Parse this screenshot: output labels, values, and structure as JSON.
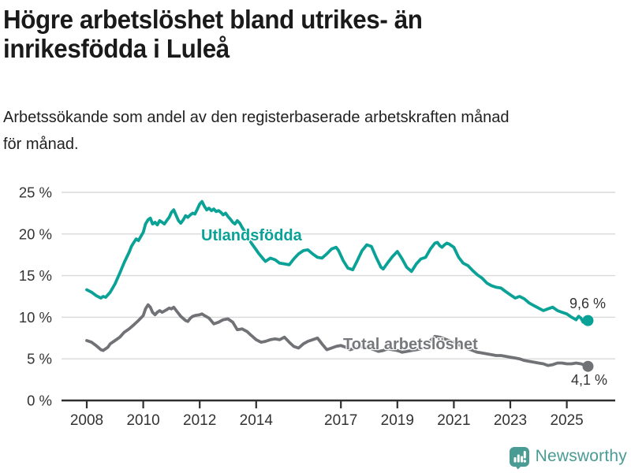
{
  "header": {
    "title": "Högre arbetslöshet bland utrikes- än inrikesfödda i Luleå",
    "title_lines": [
      "Högre arbetslöshet bland utrikes- än",
      "inrikesfödda i Luleå"
    ],
    "subtitle": "Arbetssökande som andel av den registerbaserade arbetskraften månad för månad.",
    "subtitle_lines": [
      "Arbetssökande som andel av den registerbaserade arbetskraften månad",
      "för månad."
    ]
  },
  "footer": {
    "brand": "Newsworthy",
    "brand_color": "#4a9b94",
    "logo_icon": "bar-chart-speech-bubble-icon"
  },
  "chart_data": {
    "type": "line",
    "title": "Högre arbetslöshet bland utrikes- än inrikesfödda i Luleå",
    "subtitle": "Arbetssökande som andel av den registerbaserade arbetskraften månad för månad.",
    "xlabel": "",
    "ylabel": "",
    "x_unit": "year (monthly observations)",
    "xlim": [
      2007.1,
      2026.7
    ],
    "ylim": [
      0,
      25
    ],
    "grid": true,
    "grid_color": "#d9d9d9",
    "axis_color": "#2f2f31",
    "tick_text_color": "#333333",
    "legend_position": "inline-labels",
    "yticks": [
      {
        "value": 0,
        "label": "0 %"
      },
      {
        "value": 5,
        "label": "5 %"
      },
      {
        "value": 10,
        "label": "10 %"
      },
      {
        "value": 15,
        "label": "15 %"
      },
      {
        "value": 20,
        "label": "20 %"
      },
      {
        "value": 25,
        "label": "25 %"
      }
    ],
    "xticks": [
      {
        "value": 2008,
        "label": "2008"
      },
      {
        "value": 2010,
        "label": "2010"
      },
      {
        "value": 2012,
        "label": "2012"
      },
      {
        "value": 2014,
        "label": "2014"
      },
      {
        "value": 2017,
        "label": "2017"
      },
      {
        "value": 2019,
        "label": "2019"
      },
      {
        "value": 2021,
        "label": "2021"
      },
      {
        "value": 2023,
        "label": "2023"
      },
      {
        "value": 2025,
        "label": "2025"
      }
    ],
    "series": [
      {
        "name": "Utlandsfödda",
        "key": "utlandsfodda",
        "color": "#0aa296",
        "end_value": 9.6,
        "end_label": "9,6 %",
        "points": [
          [
            2008.0,
            13.3
          ],
          [
            2008.17,
            13.0
          ],
          [
            2008.33,
            12.6
          ],
          [
            2008.5,
            12.3
          ],
          [
            2008.58,
            12.5
          ],
          [
            2008.67,
            12.4
          ],
          [
            2008.83,
            13.0
          ],
          [
            2009.0,
            14.0
          ],
          [
            2009.17,
            15.3
          ],
          [
            2009.33,
            16.6
          ],
          [
            2009.5,
            17.8
          ],
          [
            2009.58,
            18.5
          ],
          [
            2009.67,
            19.0
          ],
          [
            2009.75,
            19.4
          ],
          [
            2009.83,
            19.2
          ],
          [
            2010.0,
            20.2
          ],
          [
            2010.08,
            21.2
          ],
          [
            2010.17,
            21.7
          ],
          [
            2010.25,
            21.9
          ],
          [
            2010.33,
            21.2
          ],
          [
            2010.42,
            21.4
          ],
          [
            2010.5,
            21.1
          ],
          [
            2010.58,
            21.6
          ],
          [
            2010.67,
            21.4
          ],
          [
            2010.75,
            21.2
          ],
          [
            2010.83,
            21.6
          ],
          [
            2010.92,
            22.0
          ],
          [
            2011.0,
            22.6
          ],
          [
            2011.08,
            22.9
          ],
          [
            2011.17,
            22.2
          ],
          [
            2011.25,
            21.6
          ],
          [
            2011.33,
            21.3
          ],
          [
            2011.42,
            21.7
          ],
          [
            2011.5,
            22.2
          ],
          [
            2011.58,
            22.0
          ],
          [
            2011.67,
            22.3
          ],
          [
            2011.75,
            22.5
          ],
          [
            2011.83,
            22.4
          ],
          [
            2011.92,
            23.0
          ],
          [
            2012.0,
            23.6
          ],
          [
            2012.08,
            23.9
          ],
          [
            2012.17,
            23.3
          ],
          [
            2012.25,
            22.9
          ],
          [
            2012.33,
            23.1
          ],
          [
            2012.42,
            22.8
          ],
          [
            2012.5,
            23.0
          ],
          [
            2012.58,
            22.7
          ],
          [
            2012.67,
            22.8
          ],
          [
            2012.75,
            22.6
          ],
          [
            2012.83,
            22.3
          ],
          [
            2012.92,
            22.5
          ],
          [
            2013.0,
            22.1
          ],
          [
            2013.08,
            21.8
          ],
          [
            2013.17,
            21.4
          ],
          [
            2013.25,
            21.2
          ],
          [
            2013.33,
            21.6
          ],
          [
            2013.42,
            21.3
          ],
          [
            2013.5,
            20.8
          ],
          [
            2013.67,
            19.9
          ],
          [
            2013.83,
            18.9
          ],
          [
            2014.0,
            18.1
          ],
          [
            2014.08,
            17.7
          ],
          [
            2014.25,
            17.0
          ],
          [
            2014.33,
            16.7
          ],
          [
            2014.5,
            17.1
          ],
          [
            2014.67,
            16.9
          ],
          [
            2014.83,
            16.5
          ],
          [
            2015.0,
            16.4
          ],
          [
            2015.17,
            16.3
          ],
          [
            2015.33,
            17.0
          ],
          [
            2015.5,
            17.6
          ],
          [
            2015.67,
            18.0
          ],
          [
            2015.83,
            18.1
          ],
          [
            2016.0,
            17.6
          ],
          [
            2016.17,
            17.2
          ],
          [
            2016.33,
            17.1
          ],
          [
            2016.5,
            17.6
          ],
          [
            2016.67,
            18.2
          ],
          [
            2016.83,
            18.4
          ],
          [
            2016.92,
            18.0
          ],
          [
            2017.08,
            16.8
          ],
          [
            2017.25,
            15.9
          ],
          [
            2017.42,
            15.7
          ],
          [
            2017.58,
            16.8
          ],
          [
            2017.75,
            18.0
          ],
          [
            2017.92,
            18.7
          ],
          [
            2018.08,
            18.5
          ],
          [
            2018.25,
            17.2
          ],
          [
            2018.42,
            16.0
          ],
          [
            2018.5,
            15.8
          ],
          [
            2018.67,
            16.6
          ],
          [
            2018.83,
            17.3
          ],
          [
            2019.0,
            17.9
          ],
          [
            2019.17,
            17.0
          ],
          [
            2019.33,
            16.0
          ],
          [
            2019.5,
            15.5
          ],
          [
            2019.67,
            16.4
          ],
          [
            2019.83,
            17.0
          ],
          [
            2020.0,
            17.2
          ],
          [
            2020.17,
            18.2
          ],
          [
            2020.33,
            18.9
          ],
          [
            2020.42,
            19.0
          ],
          [
            2020.5,
            18.6
          ],
          [
            2020.58,
            18.4
          ],
          [
            2020.67,
            18.7
          ],
          [
            2020.75,
            18.9
          ],
          [
            2020.83,
            18.8
          ],
          [
            2021.0,
            18.4
          ],
          [
            2021.17,
            17.2
          ],
          [
            2021.33,
            16.5
          ],
          [
            2021.5,
            16.2
          ],
          [
            2021.67,
            15.6
          ],
          [
            2021.83,
            15.1
          ],
          [
            2022.0,
            14.7
          ],
          [
            2022.17,
            14.1
          ],
          [
            2022.33,
            13.8
          ],
          [
            2022.5,
            13.6
          ],
          [
            2022.67,
            13.5
          ],
          [
            2022.83,
            13.1
          ],
          [
            2023.0,
            12.7
          ],
          [
            2023.17,
            12.3
          ],
          [
            2023.33,
            12.5
          ],
          [
            2023.5,
            12.2
          ],
          [
            2023.67,
            11.7
          ],
          [
            2023.83,
            11.4
          ],
          [
            2024.0,
            11.1
          ],
          [
            2024.17,
            10.8
          ],
          [
            2024.33,
            11.0
          ],
          [
            2024.5,
            11.2
          ],
          [
            2024.67,
            10.8
          ],
          [
            2024.83,
            10.6
          ],
          [
            2025.0,
            10.4
          ],
          [
            2025.17,
            10.0
          ],
          [
            2025.33,
            9.7
          ],
          [
            2025.42,
            10.1
          ],
          [
            2025.5,
            9.9
          ],
          [
            2025.58,
            9.4
          ],
          [
            2025.67,
            9.5
          ],
          [
            2025.75,
            9.6
          ]
        ]
      },
      {
        "name": "Total arbetslöshet",
        "key": "total-arbetsloshet",
        "color": "#717276",
        "end_value": 4.1,
        "end_label": "4,1 %",
        "points": [
          [
            2008.0,
            7.2
          ],
          [
            2008.17,
            7.0
          ],
          [
            2008.33,
            6.6
          ],
          [
            2008.5,
            6.1
          ],
          [
            2008.58,
            6.0
          ],
          [
            2008.75,
            6.4
          ],
          [
            2008.83,
            6.8
          ],
          [
            2009.0,
            7.2
          ],
          [
            2009.17,
            7.6
          ],
          [
            2009.33,
            8.2
          ],
          [
            2009.5,
            8.6
          ],
          [
            2009.67,
            9.1
          ],
          [
            2009.83,
            9.6
          ],
          [
            2010.0,
            10.2
          ],
          [
            2010.08,
            11.0
          ],
          [
            2010.17,
            11.5
          ],
          [
            2010.25,
            11.2
          ],
          [
            2010.33,
            10.6
          ],
          [
            2010.42,
            10.3
          ],
          [
            2010.5,
            10.6
          ],
          [
            2010.58,
            10.8
          ],
          [
            2010.67,
            10.6
          ],
          [
            2010.83,
            10.9
          ],
          [
            2010.92,
            11.1
          ],
          [
            2011.0,
            11.0
          ],
          [
            2011.08,
            11.2
          ],
          [
            2011.17,
            10.8
          ],
          [
            2011.33,
            10.1
          ],
          [
            2011.5,
            9.6
          ],
          [
            2011.58,
            9.5
          ],
          [
            2011.67,
            9.9
          ],
          [
            2011.75,
            10.1
          ],
          [
            2011.83,
            10.2
          ],
          [
            2012.0,
            10.3
          ],
          [
            2012.08,
            10.4
          ],
          [
            2012.17,
            10.2
          ],
          [
            2012.33,
            9.9
          ],
          [
            2012.5,
            9.2
          ],
          [
            2012.67,
            9.4
          ],
          [
            2012.83,
            9.7
          ],
          [
            2013.0,
            9.8
          ],
          [
            2013.17,
            9.4
          ],
          [
            2013.33,
            8.5
          ],
          [
            2013.5,
            8.6
          ],
          [
            2013.67,
            8.3
          ],
          [
            2013.83,
            7.8
          ],
          [
            2014.0,
            7.3
          ],
          [
            2014.17,
            7.0
          ],
          [
            2014.33,
            7.1
          ],
          [
            2014.5,
            7.3
          ],
          [
            2014.67,
            7.4
          ],
          [
            2014.83,
            7.3
          ],
          [
            2015.0,
            7.6
          ],
          [
            2015.17,
            7.0
          ],
          [
            2015.33,
            6.5
          ],
          [
            2015.5,
            6.3
          ],
          [
            2015.67,
            6.8
          ],
          [
            2015.83,
            7.1
          ],
          [
            2016.0,
            7.3
          ],
          [
            2016.17,
            7.5
          ],
          [
            2016.33,
            6.8
          ],
          [
            2016.5,
            6.1
          ],
          [
            2016.67,
            6.3
          ],
          [
            2016.83,
            6.5
          ],
          [
            2017.0,
            6.6
          ],
          [
            2017.17,
            6.4
          ],
          [
            2017.33,
            6.1
          ],
          [
            2017.5,
            6.3
          ],
          [
            2017.67,
            6.5
          ],
          [
            2017.83,
            6.4
          ],
          [
            2018.0,
            6.3
          ],
          [
            2018.17,
            6.1
          ],
          [
            2018.33,
            5.9
          ],
          [
            2018.5,
            6.0
          ],
          [
            2018.67,
            6.2
          ],
          [
            2018.83,
            6.1
          ],
          [
            2019.0,
            6.0
          ],
          [
            2019.17,
            5.8
          ],
          [
            2019.33,
            5.9
          ],
          [
            2019.5,
            6.0
          ],
          [
            2019.67,
            6.1
          ],
          [
            2019.83,
            6.2
          ],
          [
            2020.0,
            6.4
          ],
          [
            2020.17,
            7.2
          ],
          [
            2020.33,
            7.7
          ],
          [
            2020.5,
            7.6
          ],
          [
            2020.67,
            7.4
          ],
          [
            2020.83,
            7.2
          ],
          [
            2021.0,
            7.0
          ],
          [
            2021.17,
            6.7
          ],
          [
            2021.33,
            6.5
          ],
          [
            2021.5,
            6.2
          ],
          [
            2021.67,
            6.0
          ],
          [
            2021.83,
            5.8
          ],
          [
            2022.0,
            5.7
          ],
          [
            2022.17,
            5.6
          ],
          [
            2022.33,
            5.5
          ],
          [
            2022.5,
            5.4
          ],
          [
            2022.67,
            5.4
          ],
          [
            2022.83,
            5.3
          ],
          [
            2023.0,
            5.2
          ],
          [
            2023.17,
            5.1
          ],
          [
            2023.33,
            5.0
          ],
          [
            2023.5,
            4.8
          ],
          [
            2023.67,
            4.7
          ],
          [
            2023.83,
            4.6
          ],
          [
            2024.0,
            4.5
          ],
          [
            2024.17,
            4.4
          ],
          [
            2024.33,
            4.2
          ],
          [
            2024.5,
            4.3
          ],
          [
            2024.67,
            4.5
          ],
          [
            2024.83,
            4.5
          ],
          [
            2025.0,
            4.4
          ],
          [
            2025.17,
            4.4
          ],
          [
            2025.33,
            4.5
          ],
          [
            2025.5,
            4.4
          ],
          [
            2025.67,
            4.2
          ],
          [
            2025.75,
            4.1
          ]
        ]
      }
    ]
  }
}
